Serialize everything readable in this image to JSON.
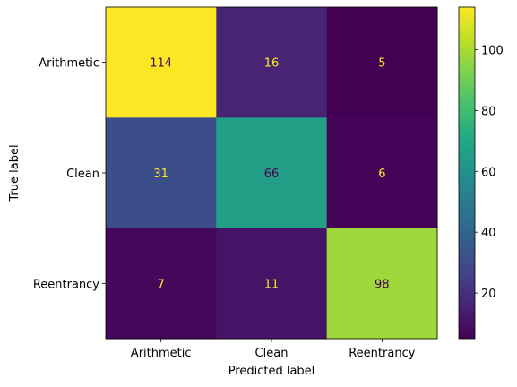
{
  "chart_data": {
    "type": "heatmap",
    "title": "",
    "xlabel": "Predicted label",
    "ylabel": "True label",
    "x_categories": [
      "Arithmetic",
      "Clean",
      "Reentrancy"
    ],
    "y_categories": [
      "Arithmetic",
      "Clean",
      "Reentrancy"
    ],
    "matrix": [
      [
        114,
        16,
        5
      ],
      [
        31,
        66,
        6
      ],
      [
        7,
        11,
        98
      ]
    ],
    "colormap": "viridis",
    "color_range": [
      5,
      114
    ],
    "colorbar_ticks": [
      "20",
      "40",
      "60",
      "80",
      "100"
    ],
    "grid": false
  }
}
